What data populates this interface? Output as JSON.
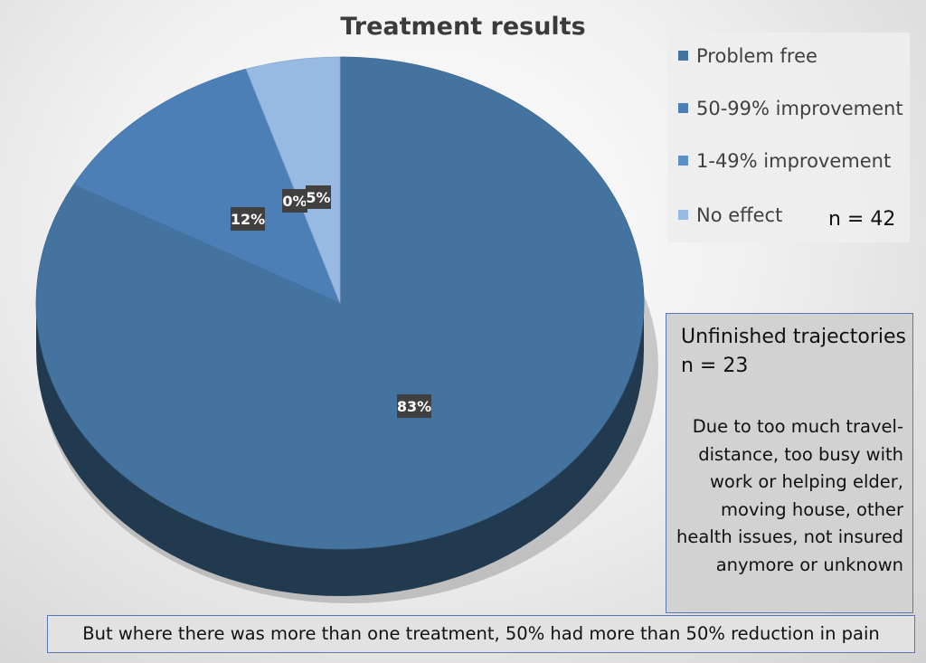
{
  "chart_data": {
    "type": "pie",
    "title": "Treatment results",
    "categories": [
      "Problem free",
      "50-99% improvement",
      "1-49% improvement",
      "No effect"
    ],
    "values": [
      83,
      12,
      0,
      5
    ],
    "data_labels": [
      "83%",
      "12%",
      "0%",
      "5%"
    ],
    "colors": [
      "#44739f",
      "#4c7fb6",
      "#5b90c8",
      "#98b9e2"
    ],
    "legend_position": "top-right",
    "style": "3d"
  },
  "annotations": {
    "n_total": "n = 42",
    "unfinished_title": "Unfinished trajectories  n = 23",
    "unfinished_body": "Due to too much travel-distance, too busy with work or helping elder, moving house, other health issues, not insured anymore or unknown",
    "bottom_note": "But where there was more than one treatment, 50% had more than 50% reduction in pain"
  }
}
